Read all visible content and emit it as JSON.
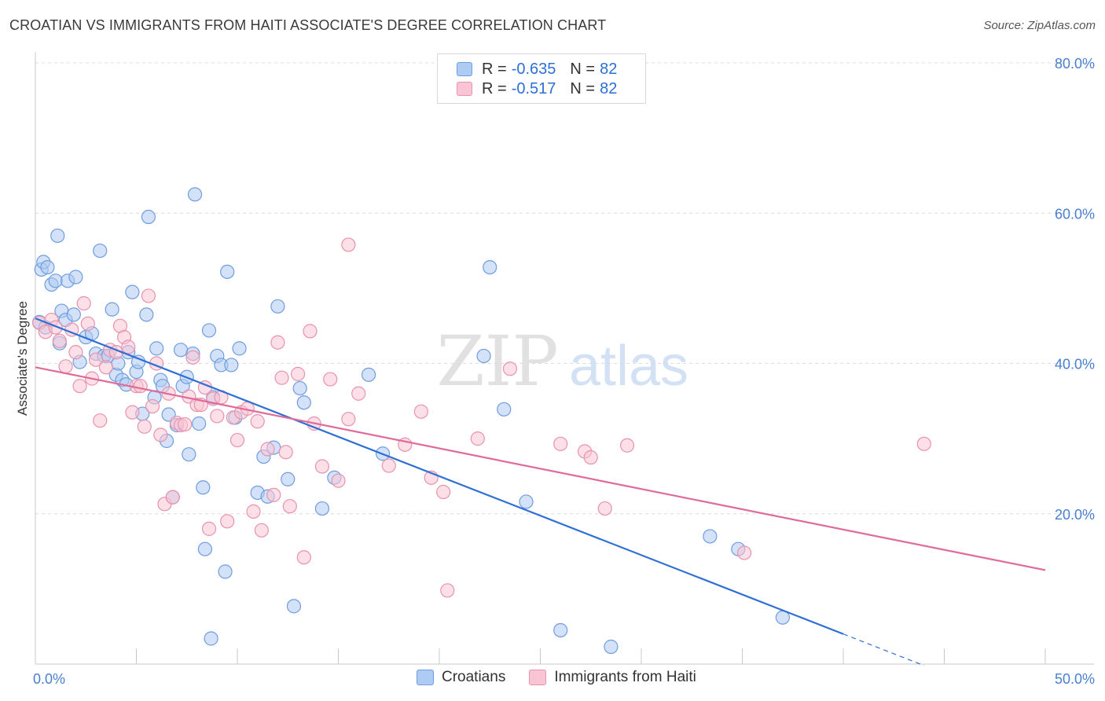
{
  "title": "CROATIAN VS IMMIGRANTS FROM HAITI ASSOCIATE'S DEGREE CORRELATION CHART",
  "source": "Source: ZipAtlas.com",
  "watermark": {
    "zip": "ZIP",
    "atlas": "atlas"
  },
  "legend_top": [
    {
      "r_label": "R =",
      "r_value": "-0.635",
      "n_label": "N =",
      "n_value": "82",
      "color": "#aecbf3",
      "border": "#6f9de0"
    },
    {
      "r_label": "R =",
      "r_value": "-0.517",
      "n_label": "N =",
      "n_value": "82",
      "color": "#f9c4d4",
      "border": "#e893ae"
    }
  ],
  "legend_bottom": [
    {
      "label": "Croatians",
      "color": "#aecbf3",
      "border": "#6f9de0"
    },
    {
      "label": "Immigrants from Haiti",
      "color": "#f9c4d4",
      "border": "#e893ae"
    }
  ],
  "chart_data": {
    "type": "scatter",
    "title": "CROATIAN VS IMMIGRANTS FROM HAITI ASSOCIATE'S DEGREE CORRELATION CHART",
    "xlabel": "",
    "ylabel": "Associate's Degree",
    "xlim": [
      0,
      50
    ],
    "ylim": [
      0,
      80
    ],
    "x_tick_labels": [
      "0.0%",
      "50.0%"
    ],
    "y_ticks": [
      20,
      40,
      60,
      80
    ],
    "y_tick_labels": [
      "20.0%",
      "40.0%",
      "60.0%",
      "80.0%"
    ],
    "grid": true,
    "colors": {
      "croatians": "#2e6fd6",
      "haiti": "#e06a98"
    },
    "series": [
      {
        "name": "Croatians",
        "color": "#2e6fd6",
        "fill": "#aecbf3",
        "points": [
          [
            0.2,
            45.5
          ],
          [
            0.3,
            52.5
          ],
          [
            0.4,
            53.5
          ],
          [
            0.5,
            44.8
          ],
          [
            0.6,
            52.8
          ],
          [
            0.8,
            50.5
          ],
          [
            1.0,
            51.0
          ],
          [
            1.1,
            57.0
          ],
          [
            1.2,
            42.7
          ],
          [
            1.3,
            47.0
          ],
          [
            1.5,
            45.8
          ],
          [
            1.6,
            51.0
          ],
          [
            1.9,
            46.5
          ],
          [
            2.0,
            51.5
          ],
          [
            2.2,
            40.2
          ],
          [
            2.5,
            43.5
          ],
          [
            2.8,
            44.0
          ],
          [
            3.0,
            41.3
          ],
          [
            3.2,
            55.0
          ],
          [
            3.4,
            41.0
          ],
          [
            3.6,
            41.0
          ],
          [
            3.8,
            47.2
          ],
          [
            4.0,
            38.5
          ],
          [
            4.1,
            40.0
          ],
          [
            4.3,
            37.8
          ],
          [
            4.5,
            37.2
          ],
          [
            4.6,
            41.5
          ],
          [
            4.8,
            49.5
          ],
          [
            5.0,
            38.9
          ],
          [
            5.1,
            40.2
          ],
          [
            5.3,
            33.3
          ],
          [
            5.5,
            46.5
          ],
          [
            5.6,
            59.5
          ],
          [
            5.9,
            35.5
          ],
          [
            6.0,
            42.0
          ],
          [
            6.2,
            37.8
          ],
          [
            6.3,
            37.0
          ],
          [
            6.5,
            29.7
          ],
          [
            6.6,
            33.2
          ],
          [
            6.8,
            22.2
          ],
          [
            7.0,
            31.8
          ],
          [
            7.2,
            41.8
          ],
          [
            7.3,
            37.0
          ],
          [
            7.5,
            38.2
          ],
          [
            7.6,
            27.9
          ],
          [
            7.8,
            41.3
          ],
          [
            7.9,
            62.5
          ],
          [
            8.1,
            32.0
          ],
          [
            8.3,
            23.5
          ],
          [
            8.4,
            15.3
          ],
          [
            8.6,
            44.4
          ],
          [
            8.7,
            3.4
          ],
          [
            8.8,
            35.5
          ],
          [
            9.0,
            41.0
          ],
          [
            9.2,
            39.8
          ],
          [
            9.4,
            12.3
          ],
          [
            9.5,
            52.2
          ],
          [
            9.7,
            39.8
          ],
          [
            9.9,
            32.8
          ],
          [
            10.1,
            42.0
          ],
          [
            11.0,
            22.8
          ],
          [
            11.3,
            27.6
          ],
          [
            11.5,
            22.3
          ],
          [
            11.8,
            28.8
          ],
          [
            12.0,
            47.6
          ],
          [
            12.5,
            24.6
          ],
          [
            12.8,
            7.7
          ],
          [
            13.1,
            36.7
          ],
          [
            13.3,
            34.8
          ],
          [
            14.2,
            20.7
          ],
          [
            14.8,
            24.8
          ],
          [
            16.5,
            38.5
          ],
          [
            17.2,
            28.0
          ],
          [
            22.2,
            41.0
          ],
          [
            22.5,
            52.8
          ],
          [
            23.2,
            33.9
          ],
          [
            24.3,
            21.6
          ],
          [
            26.0,
            4.5
          ],
          [
            28.5,
            2.3
          ],
          [
            33.4,
            17.0
          ],
          [
            34.8,
            15.3
          ],
          [
            37.0,
            6.2
          ]
        ]
      },
      {
        "name": "Immigrants from Haiti",
        "color": "#e06a98",
        "fill": "#f9c4d4",
        "points": [
          [
            0.2,
            45.4
          ],
          [
            0.5,
            44.2
          ],
          [
            0.8,
            45.8
          ],
          [
            1.0,
            44.8
          ],
          [
            1.2,
            43.0
          ],
          [
            1.5,
            39.6
          ],
          [
            1.8,
            44.5
          ],
          [
            2.0,
            41.5
          ],
          [
            2.2,
            37.0
          ],
          [
            2.4,
            48.0
          ],
          [
            2.6,
            45.3
          ],
          [
            2.8,
            38.0
          ],
          [
            3.0,
            40.5
          ],
          [
            3.2,
            32.4
          ],
          [
            3.5,
            39.5
          ],
          [
            3.7,
            41.8
          ],
          [
            4.0,
            41.5
          ],
          [
            4.2,
            45.0
          ],
          [
            4.4,
            43.5
          ],
          [
            4.6,
            42.2
          ],
          [
            4.8,
            33.5
          ],
          [
            5.0,
            37.0
          ],
          [
            5.2,
            37.0
          ],
          [
            5.4,
            31.6
          ],
          [
            5.6,
            49.0
          ],
          [
            5.8,
            34.3
          ],
          [
            6.0,
            40.0
          ],
          [
            6.2,
            30.5
          ],
          [
            6.4,
            21.3
          ],
          [
            6.6,
            36.0
          ],
          [
            6.8,
            22.2
          ],
          [
            7.0,
            32.1
          ],
          [
            7.2,
            31.8
          ],
          [
            7.4,
            31.9
          ],
          [
            7.6,
            35.6
          ],
          [
            7.8,
            40.8
          ],
          [
            8.0,
            34.5
          ],
          [
            8.2,
            34.5
          ],
          [
            8.4,
            36.8
          ],
          [
            8.6,
            18.0
          ],
          [
            8.8,
            35.3
          ],
          [
            9.0,
            33.0
          ],
          [
            9.2,
            35.5
          ],
          [
            9.5,
            19.0
          ],
          [
            9.8,
            32.8
          ],
          [
            10.0,
            29.8
          ],
          [
            10.2,
            33.5
          ],
          [
            10.5,
            34.0
          ],
          [
            10.8,
            20.3
          ],
          [
            11.0,
            32.3
          ],
          [
            11.2,
            17.8
          ],
          [
            11.5,
            28.6
          ],
          [
            11.8,
            22.5
          ],
          [
            12.0,
            42.8
          ],
          [
            12.2,
            38.1
          ],
          [
            12.4,
            28.2
          ],
          [
            12.6,
            21.0
          ],
          [
            13.0,
            38.6
          ],
          [
            13.3,
            14.2
          ],
          [
            13.6,
            44.3
          ],
          [
            13.8,
            32.0
          ],
          [
            14.2,
            26.3
          ],
          [
            14.6,
            37.9
          ],
          [
            15.0,
            24.4
          ],
          [
            15.5,
            32.6
          ],
          [
            16.0,
            36.0
          ],
          [
            17.5,
            26.4
          ],
          [
            18.3,
            29.2
          ],
          [
            19.1,
            33.6
          ],
          [
            19.6,
            24.8
          ],
          [
            20.2,
            22.9
          ],
          [
            20.4,
            9.8
          ],
          [
            21.9,
            30.0
          ],
          [
            23.5,
            39.3
          ],
          [
            26.0,
            29.3
          ],
          [
            27.2,
            28.3
          ],
          [
            27.5,
            27.5
          ],
          [
            28.2,
            20.7
          ],
          [
            29.3,
            29.1
          ],
          [
            35.1,
            14.8
          ],
          [
            44.0,
            29.3
          ],
          [
            15.5,
            55.8
          ]
        ]
      }
    ],
    "trendlines": [
      {
        "series": "Croatians",
        "x": [
          0,
          40
        ],
        "y": [
          46,
          4
        ],
        "dashed_extension": {
          "x": [
            40,
            44
          ],
          "y": [
            4,
            -0.2
          ]
        }
      },
      {
        "series": "Immigrants from Haiti",
        "x": [
          0,
          50
        ],
        "y": [
          39.5,
          12.5
        ]
      }
    ]
  }
}
